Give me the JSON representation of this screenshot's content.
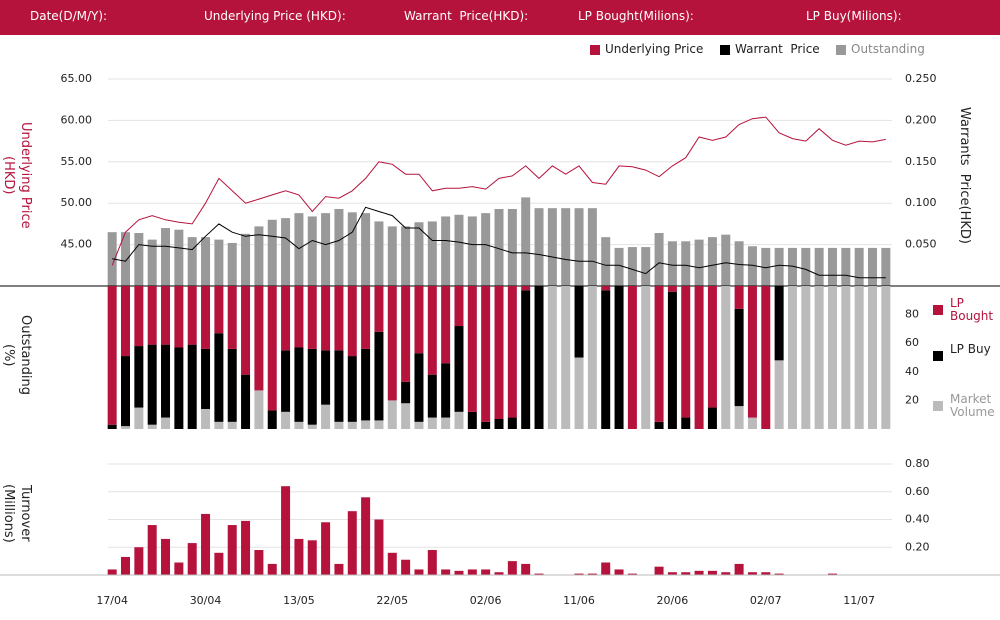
{
  "header": {
    "fields": [
      "Date(D/M/Y):",
      "Underlying Price (HKD):",
      "Warrant  Price(HKD):",
      "LP Bought(Milions):",
      "LP Buy(Milions):"
    ]
  },
  "chart_data": [
    {
      "type": "combo",
      "ylabel": [
        "Underlying Price",
        "(HKD)"
      ],
      "y2label": "Warrants  Price(HKD)",
      "ylim": [
        40,
        65
      ],
      "yticks": [
        {
          "value": 45,
          "label": "45.00"
        },
        {
          "value": 50,
          "label": "50.00"
        },
        {
          "value": 55,
          "label": "55.00"
        },
        {
          "value": 60,
          "label": "60.00"
        },
        {
          "value": 65,
          "label": "65.00"
        }
      ],
      "y2lim": [
        0,
        0.25
      ],
      "y2ticks": [
        {
          "value": 0.05,
          "label": "0.050"
        },
        {
          "value": 0.1,
          "label": "0.100"
        },
        {
          "value": 0.15,
          "label": "0.150"
        },
        {
          "value": 0.2,
          "label": "0.200"
        },
        {
          "value": 0.25,
          "label": "0.250"
        }
      ],
      "grid": true,
      "series": [
        {
          "name": "Underlying Price",
          "type": "line",
          "color": "#b5133c",
          "values": [
            42.5,
            46.5,
            48,
            48.5,
            48,
            47.7,
            47.5,
            50,
            53,
            51.5,
            50,
            50.5,
            51,
            51.5,
            51,
            49,
            50.8,
            50.6,
            51.5,
            53,
            55,
            54.7,
            53.5,
            53.5,
            51.5,
            51.8,
            51.8,
            52,
            51.7,
            53,
            53.3,
            54.5,
            53,
            54.5,
            53.5,
            54.5,
            52.5,
            52.3,
            54.5,
            54.4,
            54,
            53.2,
            54.5,
            55.5,
            58,
            57.6,
            58,
            59.5,
            60.2,
            60.4,
            58.5,
            57.8,
            57.5,
            59,
            57.6,
            57,
            57.5,
            57.4,
            57.7
          ]
        },
        {
          "name": "Warrant  Price",
          "type": "line",
          "axis": "y2",
          "color": "#000000",
          "values": [
            0.033,
            0.03,
            0.05,
            0.048,
            0.048,
            0.046,
            0.044,
            0.06,
            0.075,
            0.065,
            0.06,
            0.062,
            0.06,
            0.058,
            0.045,
            0.055,
            0.05,
            0.055,
            0.065,
            0.095,
            0.09,
            0.085,
            0.07,
            0.07,
            0.055,
            0.055,
            0.053,
            0.05,
            0.05,
            0.045,
            0.04,
            0.04,
            0.038,
            0.035,
            0.032,
            0.03,
            0.03,
            0.025,
            0.025,
            0.02,
            0.015,
            0.028,
            0.025,
            0.025,
            0.022,
            0.025,
            0.028,
            0.026,
            0.025,
            0.022,
            0.025,
            0.024,
            0.02,
            0.013,
            0.013,
            0.013,
            0.01,
            0.01,
            0.01
          ]
        },
        {
          "name": "Outstanding",
          "type": "bar",
          "axis": "y2",
          "color": "#999999",
          "values": [
            0.065,
            0.065,
            0.064,
            0.056,
            0.07,
            0.068,
            0.059,
            0.059,
            0.056,
            0.052,
            0.063,
            0.072,
            0.08,
            0.082,
            0.088,
            0.084,
            0.088,
            0.093,
            0.089,
            0.088,
            0.078,
            0.072,
            0.072,
            0.077,
            0.078,
            0.084,
            0.086,
            0.084,
            0.088,
            0.093,
            0.093,
            0.107,
            0.094,
            0.094,
            0.094,
            0.094,
            0.094,
            0.059,
            0.046,
            0.047,
            0.047,
            0.064,
            0.054,
            0.054,
            0.056,
            0.059,
            0.062,
            0.054,
            0.048,
            0.046,
            0.046,
            0.046,
            0.046,
            0.046,
            0.046,
            0.046,
            0.046,
            0.046,
            0.046
          ]
        }
      ]
    },
    {
      "type": "stacked",
      "ylabel": [
        "Outstanding",
        "(%)"
      ],
      "ylim": [
        0,
        100
      ],
      "yticks": [
        20,
        40,
        60,
        80
      ],
      "series": [
        {
          "name": "LP Bought",
          "color": "#b5133c",
          "values": [
            97,
            49,
            42,
            41,
            41,
            43,
            41,
            44,
            33,
            44,
            62,
            73,
            87,
            45,
            43,
            44,
            45,
            45,
            49,
            44,
            32,
            80,
            67,
            47,
            62,
            54,
            28,
            88,
            95,
            93,
            92,
            3,
            0,
            0,
            0,
            0,
            0,
            3,
            0,
            100,
            0,
            95,
            4,
            92,
            100,
            85,
            0,
            16,
            92,
            100,
            0,
            0,
            0,
            0,
            0,
            0,
            0,
            0,
            0
          ]
        },
        {
          "name": "LP Buy",
          "color": "#000000",
          "values": [
            3,
            49,
            43,
            56,
            51,
            57,
            59,
            42,
            62,
            51,
            38,
            0,
            13,
            43,
            52,
            53,
            38,
            50,
            46,
            50,
            62,
            0,
            15,
            48,
            30,
            38,
            60,
            12,
            5,
            7,
            8,
            97,
            100,
            0,
            0,
            50,
            0,
            97,
            100,
            0,
            0,
            5,
            96,
            8,
            0,
            15,
            0,
            68,
            0,
            0,
            52,
            0,
            0,
            0,
            0,
            0,
            0,
            0,
            0
          ]
        },
        {
          "name": "Market Volume",
          "color": "#bbbbbb",
          "values": [
            0,
            2,
            15,
            3,
            8,
            0,
            0,
            14,
            5,
            5,
            0,
            27,
            0,
            12,
            5,
            3,
            17,
            5,
            5,
            6,
            6,
            20,
            18,
            5,
            8,
            8,
            12,
            0,
            0,
            0,
            0,
            0,
            0,
            100,
            100,
            50,
            100,
            0,
            0,
            0,
            100,
            0,
            0,
            0,
            0,
            0,
            100,
            16,
            8,
            0,
            48,
            100,
            100,
            100,
            100,
            100,
            100,
            100,
            100
          ]
        }
      ]
    },
    {
      "type": "bar",
      "ylabel": [
        "Turnover",
        "(Millions)"
      ],
      "ylim": [
        0,
        0.8
      ],
      "yticks": [
        {
          "value": 0.2,
          "label": "0.20"
        },
        {
          "value": 0.4,
          "label": "0.40"
        },
        {
          "value": 0.6,
          "label": "0.60"
        },
        {
          "value": 0.8,
          "label": "0.80"
        }
      ],
      "grid": true,
      "color": "#b5133c",
      "categories": [
        "17/04",
        null,
        null,
        null,
        null,
        null,
        null,
        "30/04",
        null,
        null,
        null,
        null,
        null,
        null,
        "13/05",
        null,
        null,
        null,
        null,
        null,
        null,
        "22/05",
        null,
        null,
        null,
        null,
        null,
        null,
        "02/06",
        null,
        null,
        null,
        null,
        null,
        null,
        "11/06",
        null,
        null,
        null,
        null,
        null,
        null,
        "20/06",
        null,
        null,
        null,
        null,
        null,
        null,
        "02/07",
        null,
        null,
        null,
        null,
        null,
        null,
        "11/07",
        null,
        null
      ],
      "values": [
        0.04,
        0.13,
        0.2,
        0.36,
        0.26,
        0.09,
        0.23,
        0.44,
        0.16,
        0.36,
        0.39,
        0.18,
        0.08,
        0.64,
        0.26,
        0.25,
        0.38,
        0.08,
        0.46,
        0.56,
        0.4,
        0.16,
        0.11,
        0.04,
        0.18,
        0.04,
        0.03,
        0.04,
        0.04,
        0.02,
        0.1,
        0.08,
        0.01,
        0,
        0,
        0.01,
        0.01,
        0.09,
        0.04,
        0.01,
        0,
        0.06,
        0.02,
        0.02,
        0.03,
        0.03,
        0.02,
        0.08,
        0.02,
        0.02,
        0.01,
        0,
        0,
        0,
        0.01,
        0,
        0,
        0,
        0
      ]
    }
  ]
}
